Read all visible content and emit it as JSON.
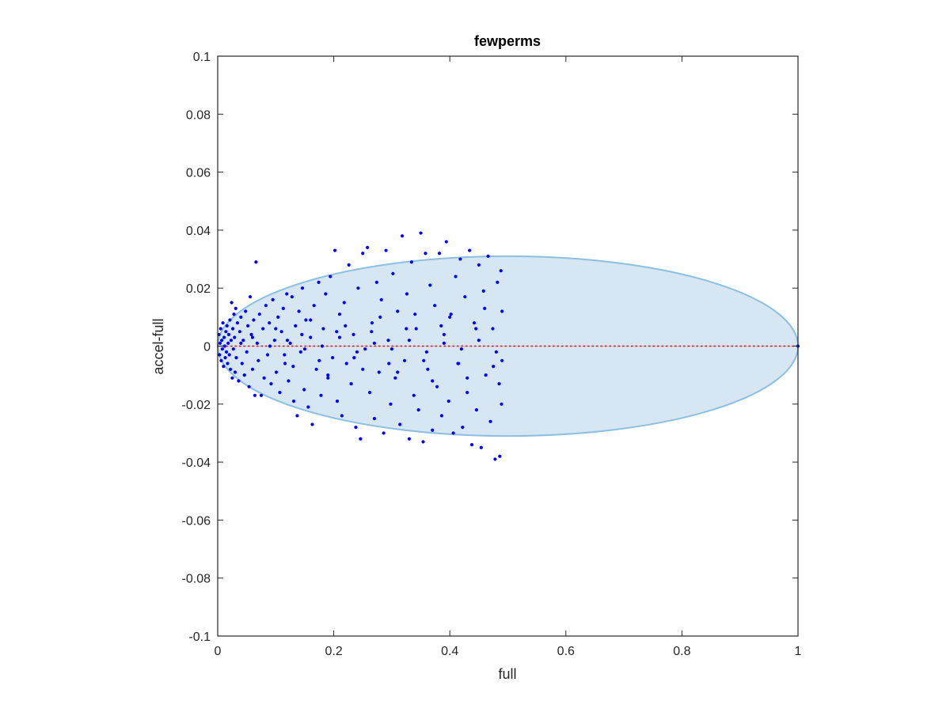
{
  "chart_data": {
    "type": "scatter",
    "title": "fewperms",
    "xlabel": "full",
    "ylabel": "accel-full",
    "xlim": [
      0,
      1
    ],
    "ylim": [
      -0.1,
      0.1
    ],
    "xticks": [
      0,
      0.2,
      0.4,
      0.6,
      0.8,
      1
    ],
    "xtick_labels": [
      "0",
      "0.2",
      "0.4",
      "0.6",
      "0.8",
      "1"
    ],
    "yticks": [
      -0.1,
      -0.08,
      -0.06,
      -0.04,
      -0.02,
      0,
      0.02,
      0.04,
      0.06,
      0.08,
      0.1
    ],
    "ytick_labels": [
      "-0.1",
      "-0.08",
      "-0.06",
      "-0.04",
      "-0.02",
      "0",
      "0.02",
      "0.04",
      "0.06",
      "0.08",
      "0.1"
    ],
    "grid": false,
    "box": true,
    "ellipse": {
      "center": [
        0.5,
        0
      ],
      "semi_axes": [
        0.5,
        0.031
      ],
      "fill": "#d6e7f3",
      "stroke": "#8cbfe0"
    },
    "reference_line": {
      "y": 0,
      "x_range": [
        0,
        1
      ],
      "color": "#ff0000",
      "style": "dotted"
    },
    "point_color": "#0000ff",
    "points": [
      [
        0.002,
        0.004
      ],
      [
        0.003,
        -0.003
      ],
      [
        0.004,
        0.001
      ],
      [
        0.005,
        0.006
      ],
      [
        0.006,
        -0.005
      ],
      [
        0.007,
        0.002
      ],
      [
        0.008,
        -0.001
      ],
      [
        0.009,
        0.008
      ],
      [
        0.01,
        -0.007
      ],
      [
        0.011,
        0.003
      ],
      [
        0.012,
        0.0
      ],
      [
        0.013,
        -0.004
      ],
      [
        0.014,
        0.005
      ],
      [
        0.015,
        -0.002
      ],
      [
        0.016,
        0.007
      ],
      [
        0.017,
        -0.006
      ],
      [
        0.018,
        0.001
      ],
      [
        0.019,
        0.004
      ],
      [
        0.02,
        -0.003
      ],
      [
        0.021,
        0.009
      ],
      [
        0.022,
        -0.008
      ],
      [
        0.023,
        0.002
      ],
      [
        0.024,
        0.015
      ],
      [
        0.025,
        -0.011
      ],
      [
        0.026,
        0.006
      ],
      [
        0.027,
        -0.001
      ],
      [
        0.028,
        0.011
      ],
      [
        0.029,
        0.003
      ],
      [
        0.03,
        -0.009
      ],
      [
        0.031,
        0.013
      ],
      [
        0.032,
        -0.004
      ],
      [
        0.034,
        0.008
      ],
      [
        0.036,
        -0.012
      ],
      [
        0.038,
        0.005
      ],
      [
        0.04,
        0.01
      ],
      [
        0.042,
        -0.006
      ],
      [
        0.044,
        0.002
      ],
      [
        0.046,
        -0.01
      ],
      [
        0.048,
        0.012
      ],
      [
        0.05,
        -0.002
      ],
      [
        0.052,
        0.007
      ],
      [
        0.054,
        -0.014
      ],
      [
        0.056,
        0.017
      ],
      [
        0.058,
        0.004
      ],
      [
        0.06,
        -0.008
      ],
      [
        0.062,
        0.009
      ],
      [
        0.064,
        -0.017
      ],
      [
        0.066,
        0.029
      ],
      [
        0.068,
        0.001
      ],
      [
        0.07,
        -0.005
      ],
      [
        0.072,
        0.011
      ],
      [
        0.075,
        -0.017
      ],
      [
        0.078,
        0.006
      ],
      [
        0.08,
        -0.011
      ],
      [
        0.083,
        0.014
      ],
      [
        0.086,
        -0.003
      ],
      [
        0.089,
        0.008
      ],
      [
        0.092,
        -0.013
      ],
      [
        0.095,
        0.016
      ],
      [
        0.098,
        0.002
      ],
      [
        0.101,
        -0.009
      ],
      [
        0.104,
        0.01
      ],
      [
        0.107,
        -0.016
      ],
      [
        0.11,
        0.005
      ],
      [
        0.113,
        0.013
      ],
      [
        0.116,
        -0.006
      ],
      [
        0.119,
        0.018
      ],
      [
        0.122,
        -0.012
      ],
      [
        0.125,
        0.001
      ],
      [
        0.128,
        0.017
      ],
      [
        0.131,
        -0.019
      ],
      [
        0.134,
        0.007
      ],
      [
        0.137,
        -0.024
      ],
      [
        0.14,
        0.012
      ],
      [
        0.143,
        -0.002
      ],
      [
        0.146,
        0.02
      ],
      [
        0.149,
        -0.015
      ],
      [
        0.152,
        0.009
      ],
      [
        0.156,
        -0.021
      ],
      [
        0.16,
        0.003
      ],
      [
        0.163,
        -0.027
      ],
      [
        0.166,
        0.014
      ],
      [
        0.17,
        -0.008
      ],
      [
        0.174,
        0.022
      ],
      [
        0.178,
        -0.017
      ],
      [
        0.182,
        0.006
      ],
      [
        0.186,
        0.018
      ],
      [
        0.19,
        -0.011
      ],
      [
        0.194,
        0.024
      ],
      [
        0.198,
        -0.004
      ],
      [
        0.202,
        0.033
      ],
      [
        0.206,
        -0.019
      ],
      [
        0.21,
        0.011
      ],
      [
        0.214,
        -0.024
      ],
      [
        0.218,
        0.015
      ],
      [
        0.222,
        -0.006
      ],
      [
        0.226,
        0.028
      ],
      [
        0.23,
        -0.013
      ],
      [
        0.234,
        0.004
      ],
      [
        0.238,
        -0.028
      ],
      [
        0.242,
        0.02
      ],
      [
        0.246,
        -0.032
      ],
      [
        0.25,
        0.032
      ],
      [
        0.254,
        -0.001
      ],
      [
        0.258,
        0.034
      ],
      [
        0.262,
        -0.016
      ],
      [
        0.266,
        0.008
      ],
      [
        0.27,
        -0.025
      ],
      [
        0.274,
        0.022
      ],
      [
        0.278,
        -0.009
      ],
      [
        0.282,
        0.016
      ],
      [
        0.286,
        -0.03
      ],
      [
        0.29,
        0.033
      ],
      [
        0.294,
        0.002
      ],
      [
        0.298,
        -0.02
      ],
      [
        0.302,
        0.025
      ],
      [
        0.306,
        -0.011
      ],
      [
        0.31,
        0.012
      ],
      [
        0.314,
        -0.027
      ],
      [
        0.318,
        0.038
      ],
      [
        0.322,
        -0.005
      ],
      [
        0.326,
        0.018
      ],
      [
        0.33,
        -0.032
      ],
      [
        0.334,
        0.029
      ],
      [
        0.338,
        -0.017
      ],
      [
        0.342,
        0.006
      ],
      [
        0.346,
        -0.022
      ],
      [
        0.35,
        0.039
      ],
      [
        0.354,
        -0.033
      ],
      [
        0.358,
        0.032
      ],
      [
        0.362,
        -0.008
      ],
      [
        0.366,
        0.021
      ],
      [
        0.37,
        -0.029
      ],
      [
        0.374,
        0.014
      ],
      [
        0.378,
        -0.014
      ],
      [
        0.382,
        0.032
      ],
      [
        0.386,
        -0.024
      ],
      [
        0.39,
        0.004
      ],
      [
        0.394,
        0.036
      ],
      [
        0.398,
        -0.019
      ],
      [
        0.402,
        0.011
      ],
      [
        0.406,
        -0.03
      ],
      [
        0.41,
        0.024
      ],
      [
        0.414,
        -0.006
      ],
      [
        0.418,
        0.03
      ],
      [
        0.422,
        -0.028
      ],
      [
        0.426,
        0.017
      ],
      [
        0.43,
        -0.016
      ],
      [
        0.434,
        0.033
      ],
      [
        0.438,
        -0.034
      ],
      [
        0.442,
        0.008
      ],
      [
        0.446,
        -0.022
      ],
      [
        0.45,
        0.028
      ],
      [
        0.454,
        -0.035
      ],
      [
        0.458,
        0.019
      ],
      [
        0.462,
        -0.01
      ],
      [
        0.466,
        0.031
      ],
      [
        0.47,
        -0.026
      ],
      [
        0.474,
        0.006
      ],
      [
        0.478,
        -0.039
      ],
      [
        0.482,
        0.022
      ],
      [
        0.486,
        -0.038
      ],
      [
        0.488,
        0.026
      ],
      [
        0.489,
        -0.02
      ],
      [
        0.49,
        0.012
      ],
      [
        0.49,
        -0.005
      ],
      [
        0.04,
        0.001
      ],
      [
        0.06,
        0.003
      ],
      [
        0.09,
        0.0
      ],
      [
        0.12,
        0.002
      ],
      [
        0.15,
        -0.001
      ],
      [
        0.18,
        0.0
      ],
      [
        0.21,
        0.003
      ],
      [
        0.24,
        -0.002
      ],
      [
        0.27,
        0.001
      ],
      [
        0.3,
        -0.001
      ],
      [
        0.33,
        0.002
      ],
      [
        0.36,
        -0.002
      ],
      [
        0.39,
        0.001
      ],
      [
        0.42,
        -0.001
      ],
      [
        0.45,
        0.002
      ],
      [
        0.48,
        -0.002
      ],
      [
        0.1,
        0.006
      ],
      [
        0.13,
        -0.007
      ],
      [
        0.16,
        0.009
      ],
      [
        0.19,
        -0.01
      ],
      [
        0.22,
        0.007
      ],
      [
        0.25,
        -0.008
      ],
      [
        0.28,
        0.01
      ],
      [
        0.31,
        -0.009
      ],
      [
        0.34,
        0.011
      ],
      [
        0.37,
        -0.012
      ],
      [
        0.4,
        0.01
      ],
      [
        0.43,
        -0.011
      ],
      [
        0.46,
        0.013
      ],
      [
        0.485,
        -0.013
      ],
      [
        0.115,
        -0.003
      ],
      [
        0.145,
        0.004
      ],
      [
        0.175,
        -0.005
      ],
      [
        0.205,
        0.005
      ],
      [
        0.235,
        -0.004
      ],
      [
        0.265,
        0.005
      ],
      [
        0.295,
        -0.006
      ],
      [
        0.325,
        0.006
      ],
      [
        0.355,
        -0.005
      ],
      [
        0.385,
        0.007
      ],
      [
        0.415,
        -0.006
      ],
      [
        0.445,
        0.006
      ],
      [
        0.475,
        -0.007
      ],
      [
        1.0,
        0.0
      ]
    ]
  }
}
